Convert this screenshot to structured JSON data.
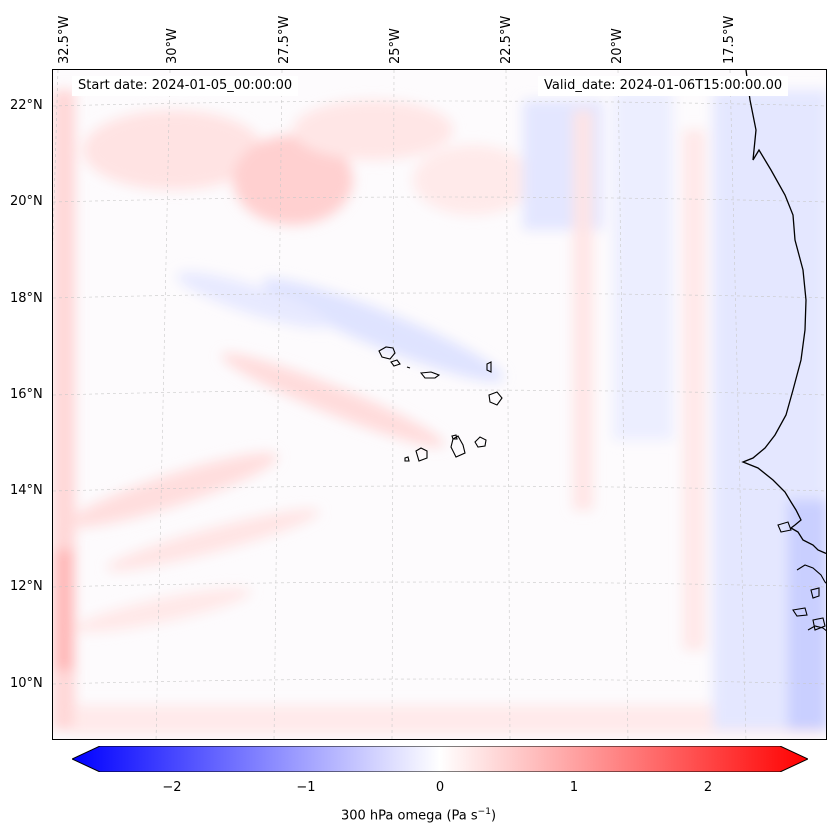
{
  "map": {
    "start_label": "Start date: 2024-01-05_00:00:00",
    "valid_label": "Valid_date: 2024-01-06T15:00:00.00",
    "lon_labels": [
      "32.5°W",
      "30°W",
      "27.5°W",
      "25°W",
      "22.5°W",
      "20°W",
      "17.5°W"
    ],
    "lat_labels": [
      "22°N",
      "20°N",
      "18°N",
      "16°N",
      "14°N",
      "12°N",
      "10°N"
    ]
  },
  "colorbar": {
    "label": "300 hPa omega (Pa s",
    "label_sup": "−1",
    "label_close": ")",
    "ticks": [
      "−2",
      "−1",
      "0",
      "1",
      "2"
    ],
    "range": [
      -2.7,
      2.7
    ],
    "colors": {
      "min": "#0000ff",
      "mid": "#ffffff",
      "max": "#ff0000"
    }
  }
}
